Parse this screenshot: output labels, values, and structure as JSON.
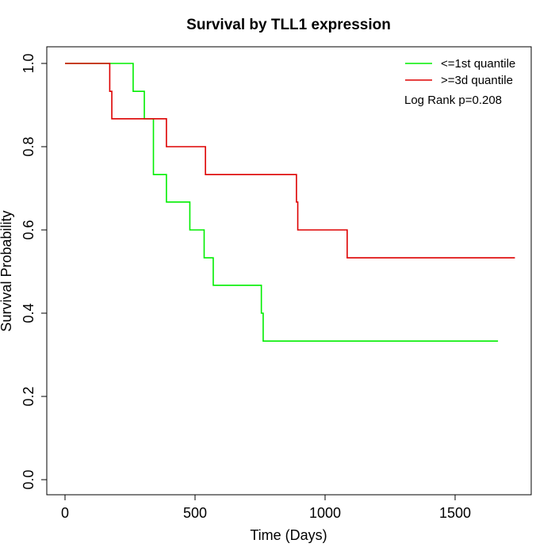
{
  "chart_data": {
    "type": "line",
    "step": true,
    "title": "Survival by TLL1 expression",
    "xlabel": "Time (Days)",
    "ylabel": "Survival Probability",
    "xlim": [
      0,
      1750
    ],
    "ylim": [
      0,
      1.0
    ],
    "x_ticks": [
      0,
      500,
      1000,
      1500
    ],
    "x_tick_labels": [
      "0",
      "500",
      "1000",
      "1500"
    ],
    "y_ticks": [
      0.0,
      0.2,
      0.4,
      0.6,
      0.8,
      1.0
    ],
    "y_tick_labels": [
      "0.0",
      "0.2",
      "0.4",
      "0.6",
      "0.8",
      "1.0"
    ],
    "grid": false,
    "legend_position": "top-right",
    "annotation": "Log Rank p=0.208",
    "series": [
      {
        "name": "<=1st quantile",
        "color": "#00ee00",
        "x": [
          0,
          262,
          305,
          340,
          390,
          480,
          535,
          570,
          755,
          762,
          1665
        ],
        "y": [
          1.0,
          0.933,
          0.867,
          0.733,
          0.667,
          0.6,
          0.533,
          0.467,
          0.4,
          0.333,
          0.333
        ]
      },
      {
        "name": ">=3d quantile",
        "color": "#dd0000",
        "x": [
          0,
          172,
          180,
          390,
          540,
          890,
          895,
          1085,
          1730
        ],
        "y": [
          1.0,
          0.933,
          0.867,
          0.8,
          0.733,
          0.667,
          0.6,
          0.533,
          0.533
        ]
      }
    ]
  }
}
